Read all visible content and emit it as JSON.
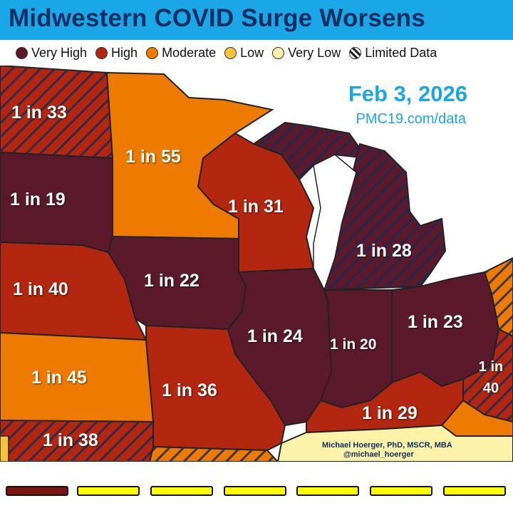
{
  "header": {
    "title": "Midwestern COVID Surge Worsens"
  },
  "legend": [
    {
      "label": "Very High",
      "color": "#5a1a2b",
      "icon": "filled-circle"
    },
    {
      "label": "High",
      "color": "#b3260f",
      "icon": "filled-circle"
    },
    {
      "label": "Moderate",
      "color": "#ee7a00",
      "icon": "filled-circle"
    },
    {
      "label": "Low",
      "color": "#f8c33b",
      "icon": "filled-circle"
    },
    {
      "label": "Very Low",
      "color": "#fdf3a8",
      "icon": "filled-circle"
    },
    {
      "label": "Limited Data",
      "color": "#222222",
      "icon": "hatched-circle"
    }
  ],
  "map": {
    "date": "Feb 3, 2026",
    "source": "PMC19.com/data",
    "credit_line1": "Michael Hoerger, PhD, MSCR, MBA",
    "credit_line2": "@michael_hoerger",
    "regions": [
      {
        "id": "north-dakota",
        "label": "1 in 33",
        "level": "High",
        "limited_data": true
      },
      {
        "id": "minnesota",
        "label": "1 in 55",
        "level": "Moderate",
        "limited_data": false
      },
      {
        "id": "south-dakota",
        "label": "1 in 19",
        "level": "Very High",
        "limited_data": false
      },
      {
        "id": "wisconsin",
        "label": "1 in 31",
        "level": "High",
        "limited_data": false
      },
      {
        "id": "michigan",
        "label": "1 in 28",
        "level": "Very High",
        "limited_data": true
      },
      {
        "id": "iowa",
        "label": "1 in 22",
        "level": "Very High",
        "limited_data": false
      },
      {
        "id": "nebraska",
        "label": "1 in 40",
        "level": "High",
        "limited_data": false
      },
      {
        "id": "illinois",
        "label": "1 in 24",
        "level": "Very High",
        "limited_data": false
      },
      {
        "id": "indiana",
        "label": "1 in 20",
        "level": "Very High",
        "limited_data": false
      },
      {
        "id": "ohio",
        "label": "1 in 23",
        "level": "Very High",
        "limited_data": false
      },
      {
        "id": "kansas",
        "label": "1 in 45",
        "level": "Moderate",
        "limited_data": false
      },
      {
        "id": "missouri",
        "label": "1 in 36",
        "level": "High",
        "limited_data": false
      },
      {
        "id": "kentucky",
        "label": "1 in 29",
        "level": "High",
        "limited_data": false
      },
      {
        "id": "oklahoma",
        "label": "1 in 38",
        "level": "High",
        "limited_data": true
      },
      {
        "id": "west-virginia",
        "label": "1 in 40",
        "level": "High",
        "limited_data": true
      }
    ]
  },
  "timeline": {
    "steps": [
      {
        "color": "#7a1410"
      },
      {
        "color": "#ffff00"
      },
      {
        "color": "#ffff00"
      },
      {
        "color": "#ffff00"
      },
      {
        "color": "#ffff00"
      },
      {
        "color": "#ffff00"
      },
      {
        "color": "#ffff00"
      }
    ]
  }
}
